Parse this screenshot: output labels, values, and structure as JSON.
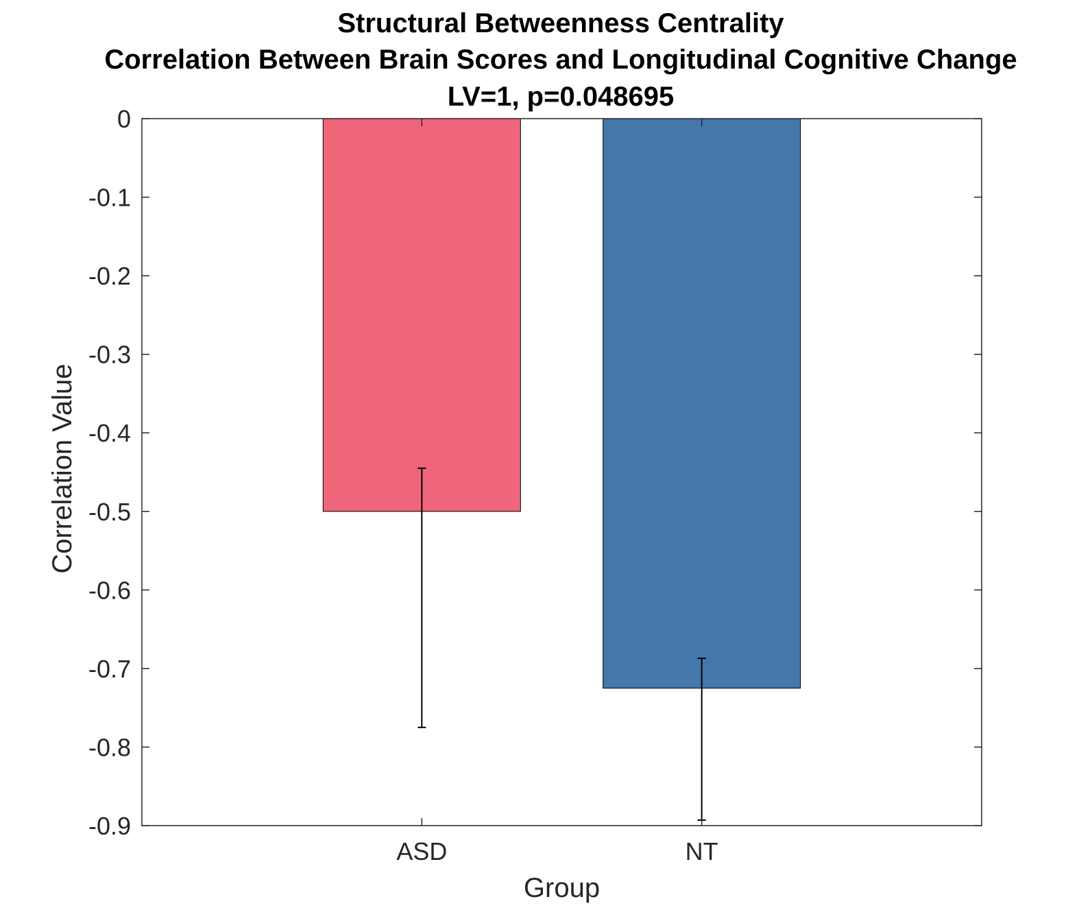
{
  "chart_data": {
    "type": "bar",
    "title": [
      "Structural Betweenness Centrality",
      "Correlation Between Brain Scores and Longitudinal Cognitive Change",
      "LV=1, p=0.048695"
    ],
    "xlabel": "Group",
    "ylabel": "Correlation Value",
    "categories": [
      "ASD",
      "NT"
    ],
    "values": [
      -0.5,
      -0.725
    ],
    "error_bars": [
      {
        "upper": -0.445,
        "lower": -0.775
      },
      {
        "upper": -0.687,
        "lower": -0.893
      }
    ],
    "colors": [
      "#EF667A",
      "#4477AA"
    ],
    "ylim": [
      -0.9,
      0
    ],
    "yticks": [
      0,
      -0.1,
      -0.2,
      -0.3,
      -0.4,
      -0.5,
      -0.6,
      -0.7,
      -0.8,
      -0.9
    ],
    "ytick_labels": [
      "0",
      "-0.1",
      "-0.2",
      "-0.3",
      "-0.4",
      "-0.5",
      "-0.6",
      "-0.7",
      "-0.8",
      "-0.9"
    ],
    "grid": false,
    "legend": "none"
  }
}
